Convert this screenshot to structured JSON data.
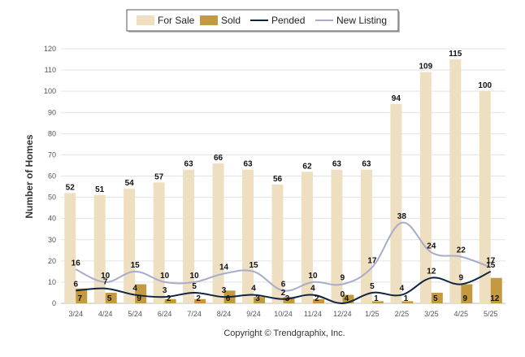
{
  "chart_data": {
    "type": "bar",
    "ylabel": "Number of Homes",
    "ylim": [
      0,
      120
    ],
    "y_ticks": [
      "0",
      "10",
      "20",
      "30",
      "40",
      "50",
      "60",
      "70",
      "80",
      "90",
      "100",
      "110",
      "120"
    ],
    "grid": true,
    "legend_position": "top-center",
    "categories": [
      "3/24",
      "4/24",
      "5/24",
      "6/24",
      "7/24",
      "8/24",
      "9/24",
      "10/24",
      "11/24",
      "12/24",
      "1/25",
      "2/25",
      "3/25",
      "4/25",
      "5/25"
    ],
    "series": [
      {
        "name": "For Sale",
        "kind": "bar",
        "color": "#efdfc1",
        "values": [
          52,
          51,
          54,
          57,
          63,
          66,
          63,
          56,
          62,
          63,
          63,
          94,
          109,
          115,
          100
        ]
      },
      {
        "name": "Sold",
        "kind": "bar",
        "color": "#c49a40",
        "values": [
          7,
          5,
          9,
          2,
          2,
          6,
          3,
          3,
          2,
          4,
          1,
          1,
          5,
          9,
          12
        ]
      },
      {
        "name": "Pended",
        "kind": "line",
        "color": "#0f2540",
        "values": [
          6,
          7,
          4,
          3,
          5,
          3,
          4,
          2,
          4,
          0,
          5,
          4,
          12,
          9,
          15
        ]
      },
      {
        "name": "New Listing",
        "kind": "line",
        "color": "#a7acca",
        "values": [
          16,
          10,
          15,
          10,
          10,
          14,
          15,
          6,
          10,
          9,
          17,
          38,
          24,
          22,
          17
        ]
      }
    ]
  },
  "footer": "Copyright © Trendgraphix, Inc."
}
